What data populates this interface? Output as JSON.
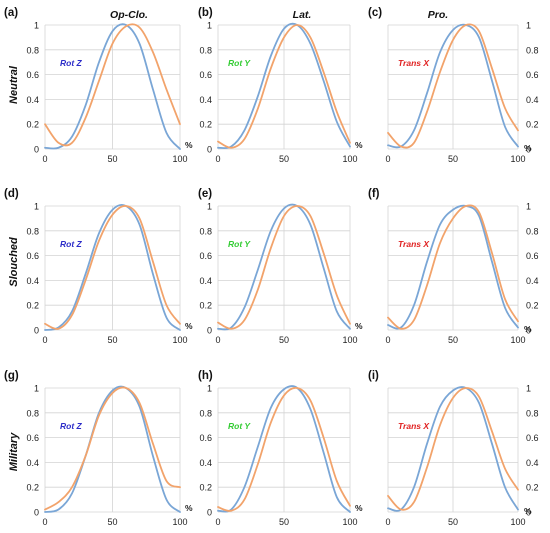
{
  "figure": {
    "column_titles": [
      "Op-Clo.",
      "Lat.",
      "Pro."
    ],
    "row_labels": [
      "Neutral",
      "Slouched",
      "Military"
    ],
    "colors": {
      "blue": "#7aa6d6",
      "orange": "#f2a36b",
      "grid": "#d4d4d4",
      "rotz": "#2b2bc8",
      "roty": "#33cc33",
      "transx": "#e02020"
    }
  },
  "chart_data": [
    {
      "type": "line",
      "panel": "(a)",
      "annotation": "Rot Z",
      "annotation_color": "#2b2bc8",
      "x": [
        0,
        10,
        20,
        30,
        40,
        50,
        60,
        70,
        80,
        90,
        100
      ],
      "xticks": [
        0,
        50,
        100
      ],
      "yticks": [
        0,
        0.2,
        0.4,
        0.6,
        0.8,
        1
      ],
      "xlim": [
        0,
        100
      ],
      "ylim": [
        0,
        1
      ],
      "unit": "%",
      "series": [
        {
          "color": "#7aa6d6",
          "values": [
            0.01,
            0.01,
            0.1,
            0.35,
            0.7,
            0.95,
            1.0,
            0.85,
            0.48,
            0.13,
            0.0
          ]
        },
        {
          "color": "#f2a36b",
          "values": [
            0.2,
            0.05,
            0.05,
            0.25,
            0.55,
            0.85,
            0.99,
            0.98,
            0.78,
            0.48,
            0.2
          ]
        }
      ]
    },
    {
      "type": "line",
      "panel": "(b)",
      "annotation": "Rot Y",
      "annotation_color": "#33cc33",
      "x": [
        0,
        10,
        20,
        30,
        40,
        50,
        60,
        70,
        80,
        90,
        100
      ],
      "xticks": [
        0,
        50,
        100
      ],
      "yticks": [
        0,
        0.2,
        0.4,
        0.6,
        0.8,
        1
      ],
      "xlim": [
        0,
        100
      ],
      "ylim": [
        0,
        1
      ],
      "unit": "%",
      "series": [
        {
          "color": "#7aa6d6",
          "values": [
            0.01,
            0.02,
            0.15,
            0.42,
            0.75,
            0.97,
            1.0,
            0.85,
            0.55,
            0.22,
            0.02
          ]
        },
        {
          "color": "#f2a36b",
          "values": [
            0.06,
            0.01,
            0.08,
            0.32,
            0.65,
            0.9,
            1.0,
            0.9,
            0.62,
            0.3,
            0.05
          ]
        }
      ]
    },
    {
      "type": "line",
      "panel": "(c)",
      "annotation": "Trans X",
      "annotation_color": "#e02020",
      "x": [
        0,
        10,
        20,
        30,
        40,
        50,
        60,
        70,
        80,
        90,
        100
      ],
      "xticks": [
        0,
        50,
        100
      ],
      "yticks": [
        0,
        0.2,
        0.4,
        0.6,
        0.8,
        1
      ],
      "xlim": [
        0,
        100
      ],
      "ylim": [
        0,
        1
      ],
      "unit": "%",
      "series": [
        {
          "color": "#7aa6d6",
          "values": [
            0.03,
            0.02,
            0.15,
            0.45,
            0.78,
            0.96,
            1.0,
            0.9,
            0.55,
            0.18,
            0.02
          ]
        },
        {
          "color": "#f2a36b",
          "values": [
            0.13,
            0.02,
            0.05,
            0.3,
            0.62,
            0.88,
            1.0,
            0.95,
            0.65,
            0.33,
            0.15
          ]
        }
      ]
    },
    {
      "type": "line",
      "panel": "(d)",
      "annotation": "Rot Z",
      "annotation_color": "#2b2bc8",
      "x": [
        0,
        10,
        20,
        30,
        40,
        50,
        60,
        70,
        80,
        90,
        100
      ],
      "xticks": [
        0,
        50,
        100
      ],
      "yticks": [
        0,
        0.2,
        0.4,
        0.6,
        0.8,
        1
      ],
      "xlim": [
        0,
        100
      ],
      "ylim": [
        0,
        1
      ],
      "unit": "%",
      "series": [
        {
          "color": "#7aa6d6",
          "values": [
            0.0,
            0.02,
            0.15,
            0.45,
            0.78,
            0.97,
            1.0,
            0.85,
            0.45,
            0.1,
            0.0
          ]
        },
        {
          "color": "#f2a36b",
          "values": [
            0.05,
            0.01,
            0.12,
            0.4,
            0.72,
            0.93,
            1.0,
            0.9,
            0.55,
            0.2,
            0.05
          ]
        }
      ]
    },
    {
      "type": "line",
      "panel": "(e)",
      "annotation": "Rot Y",
      "annotation_color": "#33cc33",
      "x": [
        0,
        10,
        20,
        30,
        40,
        50,
        60,
        70,
        80,
        90,
        100
      ],
      "xticks": [
        0,
        50,
        100
      ],
      "yticks": [
        0,
        0.2,
        0.4,
        0.6,
        0.8,
        1
      ],
      "xlim": [
        0,
        100
      ],
      "ylim": [
        0,
        1
      ],
      "unit": "%",
      "series": [
        {
          "color": "#7aa6d6",
          "values": [
            0.01,
            0.02,
            0.18,
            0.48,
            0.8,
            0.98,
            1.0,
            0.85,
            0.5,
            0.15,
            0.01
          ]
        },
        {
          "color": "#f2a36b",
          "values": [
            0.06,
            0.01,
            0.08,
            0.32,
            0.66,
            0.92,
            1.0,
            0.92,
            0.62,
            0.28,
            0.05
          ]
        }
      ]
    },
    {
      "type": "line",
      "panel": "(f)",
      "annotation": "Trans X",
      "annotation_color": "#e02020",
      "x": [
        0,
        10,
        20,
        30,
        40,
        50,
        60,
        70,
        80,
        90,
        100
      ],
      "xticks": [
        0,
        50,
        100
      ],
      "yticks": [
        0,
        0.2,
        0.4,
        0.6,
        0.8,
        1
      ],
      "xlim": [
        0,
        100
      ],
      "ylim": [
        0,
        1
      ],
      "unit": "%",
      "series": [
        {
          "color": "#7aa6d6",
          "values": [
            0.04,
            0.02,
            0.2,
            0.55,
            0.85,
            0.97,
            1.0,
            0.92,
            0.55,
            0.18,
            0.02
          ]
        },
        {
          "color": "#f2a36b",
          "values": [
            0.1,
            0.01,
            0.08,
            0.36,
            0.7,
            0.9,
            1.0,
            0.95,
            0.62,
            0.25,
            0.07
          ]
        }
      ]
    },
    {
      "type": "line",
      "panel": "(g)",
      "annotation": "Rot Z",
      "annotation_color": "#2b2bc8",
      "x": [
        0,
        10,
        20,
        30,
        40,
        50,
        60,
        70,
        80,
        90,
        100
      ],
      "xticks": [
        0,
        50,
        100
      ],
      "yticks": [
        0,
        0.2,
        0.4,
        0.6,
        0.8,
        1
      ],
      "xlim": [
        0,
        100
      ],
      "ylim": [
        0,
        1
      ],
      "unit": "%",
      "series": [
        {
          "color": "#7aa6d6",
          "values": [
            0.0,
            0.02,
            0.15,
            0.45,
            0.8,
            0.98,
            1.0,
            0.85,
            0.45,
            0.1,
            0.0
          ]
        },
        {
          "color": "#f2a36b",
          "values": [
            0.02,
            0.08,
            0.2,
            0.45,
            0.78,
            0.96,
            1.0,
            0.88,
            0.55,
            0.25,
            0.2
          ]
        }
      ]
    },
    {
      "type": "line",
      "panel": "(h)",
      "annotation": "Rot Y",
      "annotation_color": "#33cc33",
      "x": [
        0,
        10,
        20,
        30,
        40,
        50,
        60,
        70,
        80,
        90,
        100
      ],
      "xticks": [
        0,
        50,
        100
      ],
      "yticks": [
        0,
        0.2,
        0.4,
        0.6,
        0.8,
        1
      ],
      "xlim": [
        0,
        100
      ],
      "ylim": [
        0,
        1
      ],
      "unit": "%",
      "series": [
        {
          "color": "#7aa6d6",
          "values": [
            0.01,
            0.02,
            0.2,
            0.52,
            0.84,
            0.99,
            1.0,
            0.83,
            0.48,
            0.12,
            0.0
          ]
        },
        {
          "color": "#f2a36b",
          "values": [
            0.04,
            0.01,
            0.1,
            0.38,
            0.72,
            0.94,
            1.0,
            0.9,
            0.6,
            0.25,
            0.05
          ]
        }
      ]
    },
    {
      "type": "line",
      "panel": "(i)",
      "annotation": "Trans X",
      "annotation_color": "#e02020",
      "x": [
        0,
        10,
        20,
        30,
        40,
        50,
        60,
        70,
        80,
        90,
        100
      ],
      "xticks": [
        0,
        50,
        100
      ],
      "yticks": [
        0,
        0.2,
        0.4,
        0.6,
        0.8,
        1
      ],
      "xlim": [
        0,
        100
      ],
      "ylim": [
        0,
        1
      ],
      "unit": "%",
      "series": [
        {
          "color": "#7aa6d6",
          "values": [
            0.03,
            0.02,
            0.2,
            0.55,
            0.85,
            0.98,
            1.0,
            0.88,
            0.55,
            0.2,
            0.02
          ]
        },
        {
          "color": "#f2a36b",
          "values": [
            0.13,
            0.02,
            0.08,
            0.36,
            0.7,
            0.92,
            1.0,
            0.93,
            0.65,
            0.35,
            0.18
          ]
        }
      ]
    }
  ]
}
